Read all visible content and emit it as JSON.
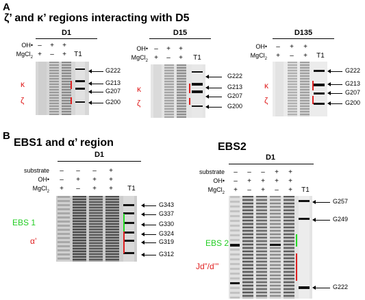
{
  "panelA": {
    "letter": "A",
    "title": "ζ’ and κ’ regions interacting with D5",
    "gels": [
      {
        "name": "D1",
        "rows": {
          "OH": [
            "–",
            "+",
            "+",
            ""
          ],
          "Mg": [
            "+",
            "–",
            "+",
            "T1"
          ]
        }
      },
      {
        "name": "D15",
        "rows": {
          "OH": [
            "–",
            "+",
            "+",
            ""
          ],
          "Mg": [
            "+",
            "–",
            "+",
            "T1"
          ]
        }
      },
      {
        "name": "D135",
        "rows": {
          "OH": [
            "–",
            "+",
            "+",
            ""
          ],
          "Mg": [
            "+",
            "–",
            "+",
            "T1"
          ]
        }
      }
    ],
    "oh_label": "OH•",
    "mg_label": "MgCl",
    "mg_sub": "2",
    "markers": [
      "G222",
      "G213",
      "G207",
      "G200"
    ],
    "regions": [
      "κ",
      "ζ"
    ]
  },
  "panelB": {
    "letter": "B",
    "left_title": "EBS1 and α’ region",
    "left_gel": "D1",
    "left_rows": {
      "substrate": [
        "–",
        "–",
        "–",
        "+",
        ""
      ],
      "OH": [
        "–",
        "+",
        "+",
        "+",
        ""
      ],
      "Mg": [
        "+",
        "–",
        "+",
        "+",
        "T1"
      ]
    },
    "left_markers": [
      "G343",
      "G337",
      "G330",
      "G324",
      "G319",
      "G312"
    ],
    "left_regions": [
      "EBS 1",
      "α’"
    ],
    "right_title": "EBS2",
    "right_gel": "D1",
    "right_rows": {
      "substrate": [
        "–",
        "–",
        "–",
        "+",
        "+",
        ""
      ],
      "OH": [
        "–",
        "+",
        "+",
        "+",
        "+",
        ""
      ],
      "Mg": [
        "+",
        "–",
        "+",
        "–",
        "+",
        "T1"
      ]
    },
    "right_markers": [
      "G257",
      "G249",
      "G222"
    ],
    "right_regions": [
      "EBS 2",
      "Jd”/d’”"
    ],
    "substrate_label": "substrate"
  }
}
